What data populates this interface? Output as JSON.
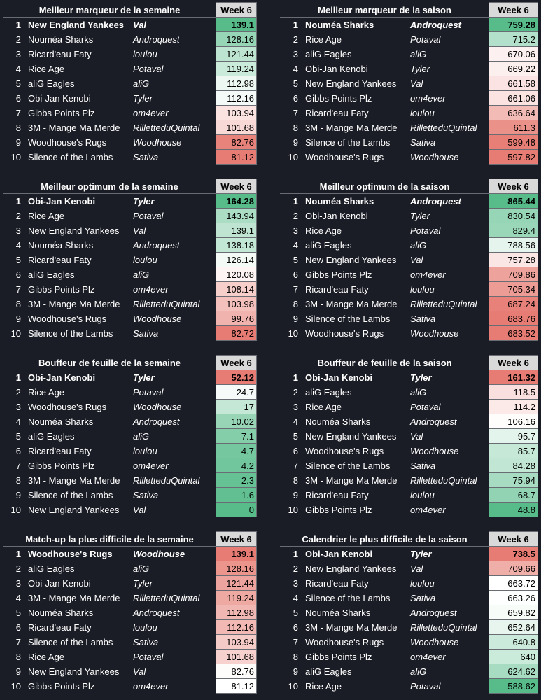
{
  "tables": [
    {
      "title": "Meilleur marqueur de la semaine",
      "header": "Week 6",
      "color_scale": {
        "low": "#e67c73",
        "mid": "#ffffff",
        "high": "#57bb8a"
      },
      "rows": [
        [
          1,
          "New England Yankees",
          "Val",
          139.1
        ],
        [
          2,
          "Nouméa Sharks",
          "Androquest",
          128.16
        ],
        [
          3,
          "Ricard'eau Faty",
          "loulou",
          121.44
        ],
        [
          4,
          "Rice Age",
          "Potaval",
          119.24
        ],
        [
          5,
          "aliG Eagles",
          "aliG",
          112.98
        ],
        [
          6,
          "Obi-Jan Kenobi",
          "Tyler",
          112.16
        ],
        [
          7,
          "Gibbs Points Plz",
          "om4ever",
          103.94
        ],
        [
          8,
          "3M - Mange Ma Merde",
          "RilletteduQuintal",
          101.68
        ],
        [
          9,
          "Woodhouse's Rugs",
          "Woodhouse",
          82.76
        ],
        [
          10,
          "Silence of the Lambs",
          "Sativa",
          81.12
        ]
      ]
    },
    {
      "title": "Meilleur marqueur de la saison",
      "header": "Week 6",
      "color_scale": {
        "low": "#e67c73",
        "mid": "#ffffff",
        "high": "#57bb8a"
      },
      "rows": [
        [
          1,
          "Nouméa Sharks",
          "Androquest",
          759.28
        ],
        [
          2,
          "Rice Age",
          "Potaval",
          715.2
        ],
        [
          3,
          "aliG Eagles",
          "aliG",
          670.06
        ],
        [
          4,
          "Obi-Jan Kenobi",
          "Tyler",
          669.22
        ],
        [
          5,
          "New England Yankees",
          "Val",
          661.58
        ],
        [
          6,
          "Gibbs Points Plz",
          "om4ever",
          661.06
        ],
        [
          7,
          "Ricard'eau Faty",
          "loulou",
          636.64
        ],
        [
          8,
          "3M - Mange Ma Merde",
          "RilletteduQuintal",
          611.3
        ],
        [
          9,
          "Silence of the Lambs",
          "Sativa",
          599.48
        ],
        [
          10,
          "Woodhouse's Rugs",
          "Woodhouse",
          597.82
        ]
      ]
    },
    {
      "title": "Meilleur optimum de la semaine",
      "header": "Week 6",
      "color_scale": {
        "low": "#e67c73",
        "mid": "#ffffff",
        "high": "#57bb8a"
      },
      "rows": [
        [
          1,
          "Obi-Jan Kenobi",
          "Tyler",
          164.28
        ],
        [
          2,
          "Rice Age",
          "Potaval",
          143.94
        ],
        [
          3,
          "New England Yankees",
          "Val",
          139.1
        ],
        [
          4,
          "Nouméa Sharks",
          "Androquest",
          138.18
        ],
        [
          5,
          "Ricard'eau Faty",
          "loulou",
          126.14
        ],
        [
          6,
          "aliG Eagles",
          "aliG",
          120.08
        ],
        [
          7,
          "Gibbs Points Plz",
          "om4ever",
          108.14
        ],
        [
          8,
          "3M - Mange Ma Merde",
          "RilletteduQuintal",
          103.98
        ],
        [
          9,
          "Woodhouse's Rugs",
          "Woodhouse",
          99.76
        ],
        [
          10,
          "Silence of the Lambs",
          "Sativa",
          82.72
        ]
      ]
    },
    {
      "title": "Meilleur optimum de la saison",
      "header": "Week 6",
      "color_scale": {
        "low": "#e67c73",
        "mid": "#ffffff",
        "high": "#57bb8a"
      },
      "rows": [
        [
          1,
          "Nouméa Sharks",
          "Androquest",
          865.44
        ],
        [
          2,
          "Obi-Jan Kenobi",
          "Tyler",
          830.54
        ],
        [
          3,
          "Rice Age",
          "Potaval",
          829.4
        ],
        [
          4,
          "aliG Eagles",
          "aliG",
          788.56
        ],
        [
          5,
          "New England Yankees",
          "Val",
          757.28
        ],
        [
          6,
          "Gibbs Points Plz",
          "om4ever",
          709.86
        ],
        [
          7,
          "Ricard'eau Faty",
          "loulou",
          705.34
        ],
        [
          8,
          "3M - Mange Ma Merde",
          "RilletteduQuintal",
          687.24
        ],
        [
          9,
          "Silence of the Lambs",
          "Sativa",
          683.76
        ],
        [
          10,
          "Woodhouse's Rugs",
          "Woodhouse",
          683.52
        ]
      ]
    },
    {
      "title": "Bouffeur de feuille de la semaine",
      "header": "Week 6",
      "color_scale": {
        "low": "#57bb8a",
        "mid": "#ffffff",
        "high": "#e67c73"
      },
      "rows": [
        [
          1,
          "Obi-Jan Kenobi",
          "Tyler",
          52.12
        ],
        [
          2,
          "Rice Age",
          "Potaval",
          24.7
        ],
        [
          3,
          "Woodhouse's Rugs",
          "Woodhouse",
          17
        ],
        [
          4,
          "Nouméa Sharks",
          "Androquest",
          10.02
        ],
        [
          5,
          "aliG Eagles",
          "aliG",
          7.1
        ],
        [
          6,
          "Ricard'eau Faty",
          "loulou",
          4.7
        ],
        [
          7,
          "Gibbs Points Plz",
          "om4ever",
          4.2
        ],
        [
          8,
          "3M - Mange Ma Merde",
          "RilletteduQuintal",
          2.3
        ],
        [
          9,
          "Silence of the Lambs",
          "Sativa",
          1.6
        ],
        [
          10,
          "New England Yankees",
          "Val",
          0
        ]
      ]
    },
    {
      "title": "Bouffeur de feuille de la saison",
      "header": "Week 6",
      "color_scale": {
        "low": "#57bb8a",
        "mid": "#ffffff",
        "high": "#e67c73"
      },
      "rows": [
        [
          1,
          "Obi-Jan Kenobi",
          "Tyler",
          161.32
        ],
        [
          2,
          "aliG Eagles",
          "aliG",
          118.5
        ],
        [
          3,
          "Rice Age",
          "Potaval",
          114.2
        ],
        [
          4,
          "Nouméa Sharks",
          "Androquest",
          106.16
        ],
        [
          5,
          "New England Yankees",
          "Val",
          95.7
        ],
        [
          6,
          "Woodhouse's Rugs",
          "Woodhouse",
          85.7
        ],
        [
          7,
          "Silence of the Lambs",
          "Sativa",
          84.28
        ],
        [
          8,
          "3M - Mange Ma Merde",
          "RilletteduQuintal",
          75.94
        ],
        [
          9,
          "Ricard'eau Faty",
          "loulou",
          68.7
        ],
        [
          10,
          "Gibbs Points Plz",
          "om4ever",
          48.8
        ]
      ]
    },
    {
      "title": "Match-up la plus difficile de la semaine",
      "header": "Week 6",
      "color_scale": {
        "low": "#ffffff",
        "high": "#e67c73"
      },
      "rows": [
        [
          1,
          "Woodhouse's Rugs",
          "Woodhouse",
          139.1
        ],
        [
          2,
          "aliG Eagles",
          "aliG",
          128.16
        ],
        [
          3,
          "Obi-Jan Kenobi",
          "Tyler",
          121.44
        ],
        [
          4,
          "3M - Mange Ma Merde",
          "RilletteduQuintal",
          119.24
        ],
        [
          5,
          "Nouméa Sharks",
          "Androquest",
          112.98
        ],
        [
          6,
          "Ricard'eau Faty",
          "loulou",
          112.16
        ],
        [
          7,
          "Silence of the Lambs",
          "Sativa",
          103.94
        ],
        [
          8,
          "Rice Age",
          "Potaval",
          101.68
        ],
        [
          9,
          "New England Yankees",
          "Val",
          82.76
        ],
        [
          10,
          "Gibbs Points Plz",
          "om4ever",
          81.12
        ]
      ]
    },
    {
      "title": "Calendrier le plus difficile de la saison",
      "header": "Week 6",
      "color_scale": {
        "low": "#57bb8a",
        "mid": "#ffffff",
        "high": "#e67c73"
      },
      "rows": [
        [
          1,
          "Obi-Jan Kenobi",
          "Tyler",
          738.5
        ],
        [
          2,
          "New England Yankees",
          "Val",
          709.66
        ],
        [
          3,
          "Ricard'eau Faty",
          "loulou",
          663.72
        ],
        [
          4,
          "Silence of the Lambs",
          "Sativa",
          663.26
        ],
        [
          5,
          "Nouméa Sharks",
          "Androquest",
          659.82
        ],
        [
          6,
          "3M - Mange Ma Merde",
          "RilletteduQuintal",
          652.64
        ],
        [
          7,
          "Woodhouse's Rugs",
          "Woodhouse",
          640.8
        ],
        [
          8,
          "Gibbs Points Plz",
          "om4ever",
          640
        ],
        [
          9,
          "aliG Eagles",
          "aliG",
          624.62
        ],
        [
          10,
          "Rice Age",
          "Potaval",
          588.62
        ]
      ]
    }
  ]
}
